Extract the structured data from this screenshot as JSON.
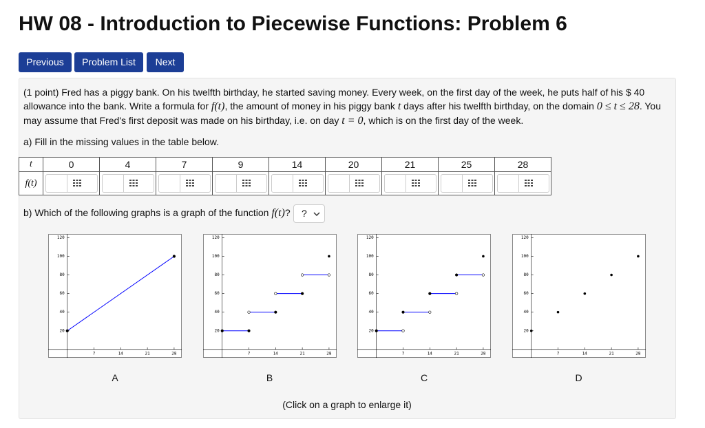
{
  "header": {
    "title": "HW 08 - Introduction to Piecewise Functions: Problem 6"
  },
  "nav": {
    "buttons": [
      "Previous",
      "Problem List",
      "Next"
    ]
  },
  "problem": {
    "paragraph": [
      "(1 point) Fred has a piggy bank. On his twelfth birthday, he started saving money. Every week, on the first day of the week, he puts half of his $ 40 allowance into the bank. Write a formula for ",
      "f(t)",
      ", the amount of money in his piggy bank ",
      "t",
      " days after his twelfth birthday, on the domain ",
      "0 ≤ t ≤ 28",
      ". You may assume that Fred's first deposit was made on his birthday, i.e. on day ",
      "t = 0",
      ", which is on the first day of the week."
    ],
    "part_a": "a) Fill in the missing values in the table below.",
    "table": {
      "header_t": "t",
      "header_f": "f(t)",
      "t_values": [
        0,
        4,
        7,
        9,
        14,
        20,
        21,
        25,
        28
      ]
    },
    "part_b": [
      "b) Which of the following graphs is a graph of the function ",
      "f(t)",
      "?"
    ],
    "select": "?",
    "graphs": {
      "xlim": [
        -5,
        30
      ],
      "ylim": [
        -9,
        124
      ],
      "xticks": [
        7,
        14,
        21,
        28
      ],
      "yticks": [
        20,
        40,
        60,
        80,
        100,
        120
      ],
      "line_color": "#0000ff",
      "items": [
        {
          "label": "A",
          "segments": [
            {
              "x": [
                0,
                28
              ],
              "y": [
                20,
                100
              ],
              "filled": [
                true,
                true
              ]
            }
          ],
          "points": {
            "x": [],
            "y": []
          }
        },
        {
          "label": "B",
          "segments": [
            {
              "x": [
                0,
                7
              ],
              "y": [
                20,
                20
              ],
              "filled": [
                true,
                true
              ]
            },
            {
              "x": [
                7,
                14
              ],
              "y": [
                40,
                40
              ],
              "filled": [
                false,
                true
              ]
            },
            {
              "x": [
                14,
                21
              ],
              "y": [
                60,
                60
              ],
              "filled": [
                false,
                true
              ]
            },
            {
              "x": [
                21,
                28
              ],
              "y": [
                80,
                80
              ],
              "filled": [
                false,
                false
              ]
            }
          ],
          "points": {
            "x": [
              28
            ],
            "y": [
              100
            ]
          }
        },
        {
          "label": "C",
          "segments": [
            {
              "x": [
                0,
                7
              ],
              "y": [
                20,
                20
              ],
              "filled": [
                true,
                false
              ]
            },
            {
              "x": [
                7,
                14
              ],
              "y": [
                40,
                40
              ],
              "filled": [
                true,
                false
              ]
            },
            {
              "x": [
                14,
                21
              ],
              "y": [
                60,
                60
              ],
              "filled": [
                true,
                false
              ]
            },
            {
              "x": [
                21,
                28
              ],
              "y": [
                80,
                80
              ],
              "filled": [
                true,
                false
              ]
            }
          ],
          "points": {
            "x": [
              28
            ],
            "y": [
              100
            ]
          }
        },
        {
          "label": "D",
          "segments": [],
          "points": {
            "x": [
              0,
              7,
              14,
              21,
              28
            ],
            "y": [
              20,
              40,
              60,
              80,
              100
            ]
          }
        }
      ]
    },
    "footer": "(Click on a graph to enlarge it)"
  }
}
